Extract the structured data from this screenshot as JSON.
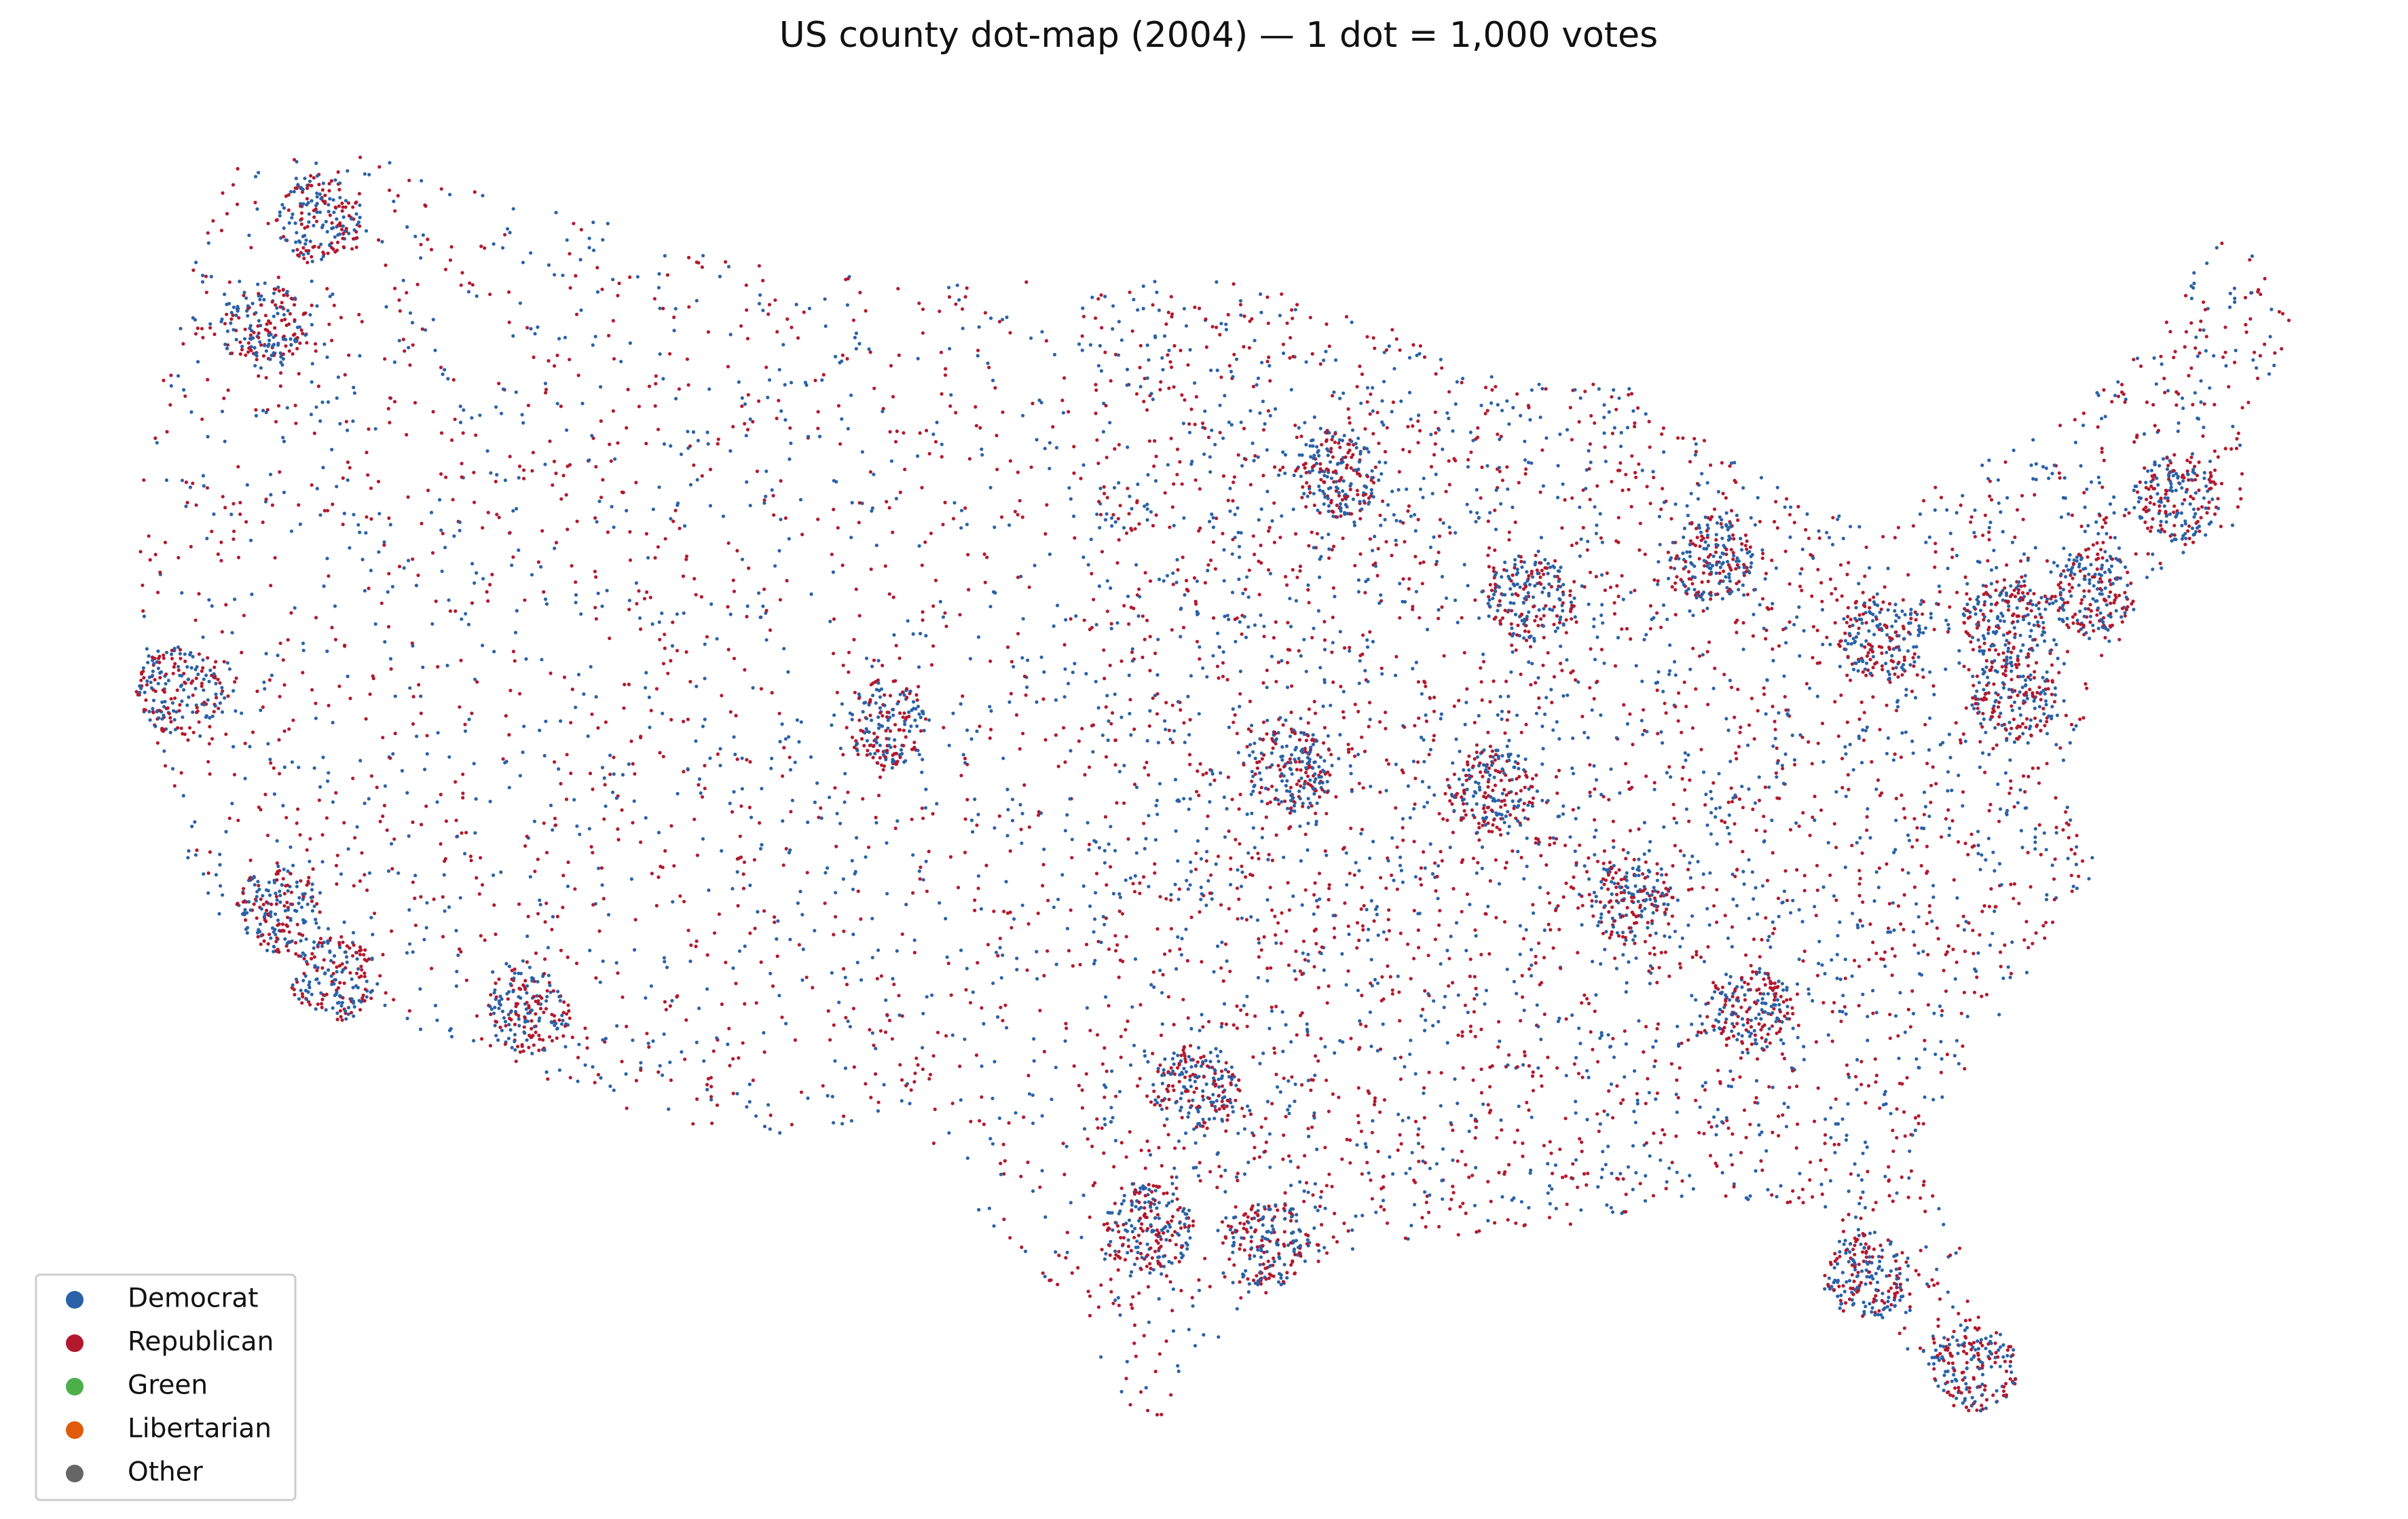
{
  "map": {
    "title": "US county dot-map (2004) — 1 dot = 1,000 votes",
    "legend": [
      {
        "name": "Democrat",
        "color": "#2a62a8"
      },
      {
        "name": "Republican",
        "color": "#b3192e"
      },
      {
        "name": "Green",
        "color": "#4daf4a"
      },
      {
        "name": "Libertarian",
        "color": "#e05c0a"
      },
      {
        "name": "Other",
        "color": "#666666"
      }
    ]
  }
}
